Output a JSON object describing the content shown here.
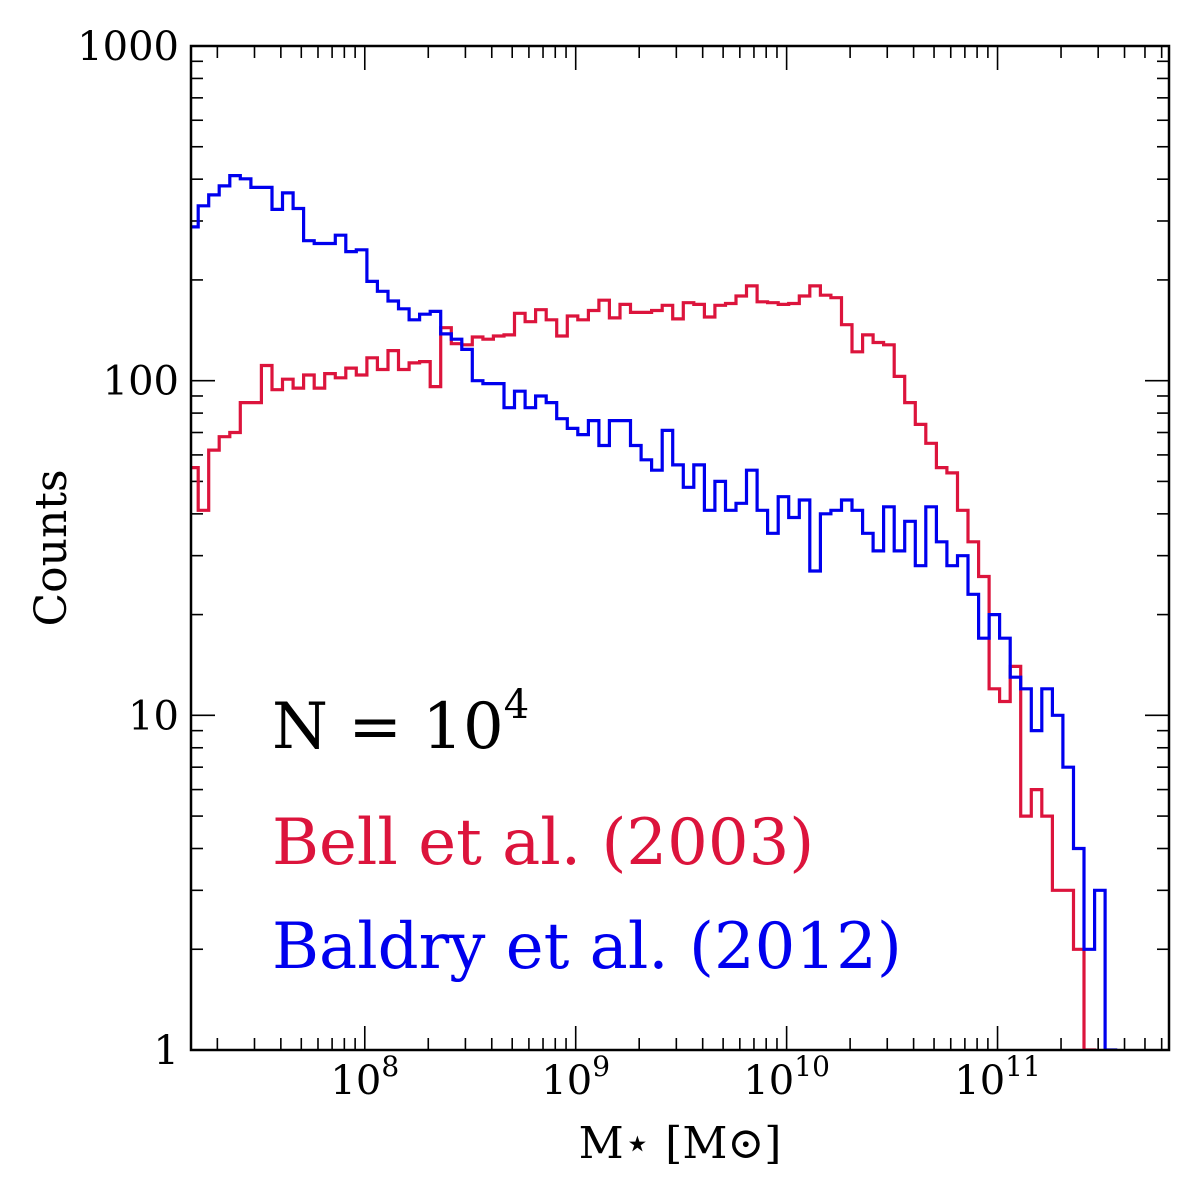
{
  "chart_data": {
    "type": "histogram",
    "x_scale": "log",
    "y_scale": "log",
    "xlabel": "M⋆ [M⊙]",
    "ylabel": "Counts",
    "xlim": [
      15000000.0,
      650000000000.0
    ],
    "ylim": [
      1,
      1000
    ],
    "x_ticks": [
      {
        "value": 100000000.0,
        "base": "10",
        "exp": "8"
      },
      {
        "value": 1000000000.0,
        "base": "10",
        "exp": "9"
      },
      {
        "value": 10000000000.0,
        "base": "10",
        "exp": "10"
      },
      {
        "value": 100000000000.0,
        "base": "10",
        "exp": "11"
      }
    ],
    "y_ticks": [
      {
        "value": 1,
        "label": "1"
      },
      {
        "value": 10,
        "label": "10"
      },
      {
        "value": 100,
        "label": "100"
      },
      {
        "value": 1000,
        "label": "1000"
      }
    ],
    "bin_edges_log10": [
      7.16,
      7.21,
      7.26,
      7.31,
      7.36,
      7.41,
      7.46,
      7.51,
      7.56,
      7.61,
      7.66,
      7.71,
      7.76,
      7.81,
      7.86,
      7.91,
      7.96,
      8.01,
      8.06,
      8.11,
      8.16,
      8.21,
      8.26,
      8.31,
      8.36,
      8.41,
      8.46,
      8.51,
      8.56,
      8.61,
      8.66,
      8.71,
      8.76,
      8.81,
      8.86,
      8.91,
      8.96,
      9.01,
      9.06,
      9.11,
      9.16,
      9.21,
      9.26,
      9.31,
      9.36,
      9.41,
      9.46,
      9.51,
      9.56,
      9.61,
      9.66,
      9.71,
      9.76,
      9.81,
      9.86,
      9.91,
      9.96,
      10.01,
      10.06,
      10.11,
      10.16,
      10.21,
      10.26,
      10.31,
      10.36,
      10.41,
      10.46,
      10.51,
      10.56,
      10.61,
      10.66,
      10.71,
      10.76,
      10.81,
      10.86,
      10.91,
      10.96,
      11.01,
      11.06,
      11.11,
      11.16,
      11.21,
      11.26,
      11.31,
      11.36,
      11.41,
      11.46,
      11.51,
      11.56,
      11.61,
      11.66,
      11.71,
      11.76,
      11.81
    ],
    "series": [
      {
        "name": "Bell et al. (2003)",
        "color": "#dc143c",
        "counts": [
          55,
          41,
          62,
          68,
          70,
          86,
          86,
          111,
          94,
          101,
          95,
          104,
          95,
          105,
          102,
          109,
          104,
          117,
          108,
          123,
          108,
          113,
          114,
          96,
          144,
          129,
          128,
          135,
          133,
          136,
          137,
          159,
          150,
          163,
          152,
          136,
          156,
          152,
          162,
          174,
          154,
          169,
          160,
          160,
          162,
          168,
          153,
          171,
          169,
          155,
          168,
          170,
          179,
          192,
          172,
          171,
          169,
          170,
          179,
          192,
          180,
          177,
          147,
          122,
          137,
          130,
          128,
          103,
          86,
          74,
          65,
          55,
          53,
          41,
          33,
          26,
          12,
          11,
          14,
          5,
          6,
          5,
          3,
          3,
          2,
          1,
          0,
          0,
          0,
          0,
          0,
          0,
          0
        ]
      },
      {
        "name": "Baldry et al. (2012)",
        "color": "#0000ee",
        "counts": [
          288,
          333,
          359,
          382,
          410,
          401,
          378,
          378,
          325,
          364,
          327,
          262,
          257,
          257,
          272,
          243,
          246,
          198,
          185,
          173,
          164,
          152,
          158,
          161,
          138,
          133,
          124,
          100,
          98,
          98,
          83,
          93,
          83,
          90,
          86,
          77,
          72,
          69,
          76,
          64,
          76,
          76,
          64,
          58,
          54,
          71,
          56,
          48,
          56,
          41,
          50,
          41,
          43,
          54,
          41,
          35,
          45,
          39,
          44,
          27,
          40,
          41,
          44,
          41,
          35,
          31,
          42,
          31,
          38,
          28,
          42,
          33,
          28,
          30,
          23,
          17,
          20,
          17,
          13,
          12,
          9,
          12,
          10,
          7,
          4,
          2,
          3,
          1,
          0,
          0,
          0,
          0,
          0
        ]
      }
    ],
    "annotations": {
      "sample_size": {
        "text": "N = 10",
        "exp": "4"
      },
      "legend_bell": "Bell et al. (2003)",
      "legend_baldry": "Baldry et al. (2012)"
    }
  }
}
